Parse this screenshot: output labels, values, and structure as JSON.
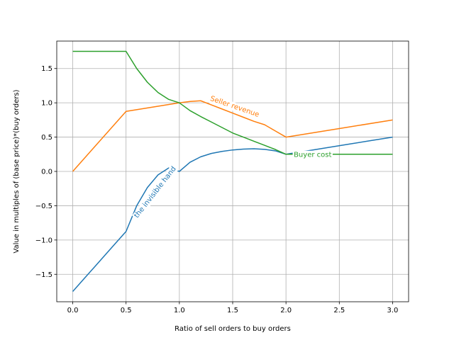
{
  "chart_data": {
    "type": "line",
    "title": "",
    "xlabel": "Ratio of sell orders to buy orders",
    "ylabel": "Value in multiples of (base price)*(buy orders)",
    "xlim": [
      -0.15,
      3.15
    ],
    "ylim": [
      -1.9,
      1.9
    ],
    "xticks": [
      0.0,
      0.5,
      1.0,
      1.5,
      2.0,
      2.5,
      3.0
    ],
    "xtick_labels": [
      "0.0",
      "0.5",
      "1.0",
      "1.5",
      "2.0",
      "2.5",
      "3.0"
    ],
    "yticks": [
      -1.5,
      -1.0,
      -0.5,
      0.0,
      0.5,
      1.0,
      1.5
    ],
    "ytick_labels": [
      "−1.5",
      "−1.0",
      "−0.5",
      "0.0",
      "0.5",
      "1.0",
      "1.5"
    ],
    "grid": true,
    "legend": "none",
    "series": [
      {
        "name": "the invisible hand",
        "color": "#1f77b4",
        "x": [
          0.0,
          0.1,
          0.2,
          0.3,
          0.4,
          0.5,
          0.6,
          0.7,
          0.8,
          0.9,
          1.0,
          1.1,
          1.2,
          1.3,
          1.4,
          1.5,
          1.6,
          1.7,
          1.8,
          1.9,
          2.0,
          2.2,
          2.4,
          2.6,
          2.8,
          3.0
        ],
        "y": [
          -1.75,
          -1.575,
          -1.4,
          -1.225,
          -1.05,
          -0.875,
          -0.5,
          -0.235,
          -0.05,
          0.05,
          0.0,
          0.134,
          0.213,
          0.262,
          0.292,
          0.313,
          0.325,
          0.33,
          0.322,
          0.3,
          0.25,
          0.3,
          0.35,
          0.4,
          0.45,
          0.5
        ]
      },
      {
        "name": "Seller revenue",
        "color": "#ff7f0e",
        "x": [
          0.0,
          0.5,
          1.0,
          1.1,
          1.2,
          1.3,
          1.4,
          1.5,
          1.6,
          1.7,
          1.8,
          1.9,
          2.0,
          2.5,
          3.0
        ],
        "y": [
          0.0,
          0.875,
          1.0,
          1.02,
          1.03,
          0.97,
          0.91,
          0.85,
          0.79,
          0.73,
          0.68,
          0.59,
          0.5,
          0.625,
          0.75
        ]
      },
      {
        "name": "Buyer cost",
        "color": "#2ca02c",
        "x": [
          0.0,
          0.5,
          0.55,
          0.6,
          0.7,
          0.8,
          0.9,
          1.0,
          1.1,
          1.2,
          1.3,
          1.4,
          1.5,
          1.6,
          1.7,
          1.8,
          1.9,
          2.0,
          2.5,
          3.0
        ],
        "y": [
          1.75,
          1.75,
          1.625,
          1.5,
          1.3,
          1.15,
          1.05,
          1.0,
          0.886,
          0.8,
          0.72,
          0.64,
          0.56,
          0.5,
          0.44,
          0.38,
          0.32,
          0.25,
          0.25,
          0.25
        ]
      }
    ],
    "annotations": [
      {
        "text": "the invisible hand",
        "series": "the invisible hand",
        "x": 0.77,
        "y": -0.3,
        "rotate": -52,
        "color": "#1f77b4"
      },
      {
        "text": "Seller revenue",
        "series": "Seller revenue",
        "x": 1.52,
        "y": 0.95,
        "rotate": 19,
        "color": "#ff7f0e"
      },
      {
        "text": "Buyer cost",
        "series": "Buyer cost",
        "x": 2.25,
        "y": 0.25,
        "rotate": 0,
        "color": "#2ca02c"
      }
    ]
  }
}
